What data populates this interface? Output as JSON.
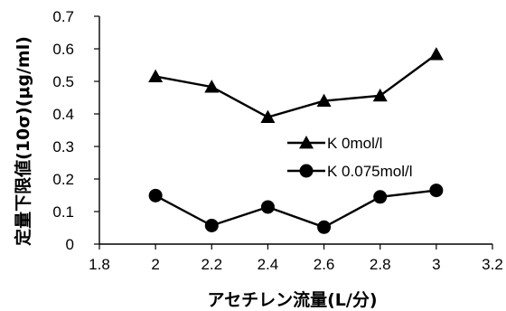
{
  "chart_data": {
    "type": "line",
    "title": "",
    "xlabel": "アセチレン流量(L/分)",
    "ylabel": "定量下限値(10σ)(μg/ml)",
    "xlim": [
      1.8,
      3.2
    ],
    "ylim": [
      0,
      0.7
    ],
    "x_ticks": [
      "1.8",
      "2",
      "2.2",
      "2.4",
      "2.6",
      "2.8",
      "3",
      "3.2"
    ],
    "y_ticks": [
      "0",
      "0.1",
      "0.2",
      "0.3",
      "0.4",
      "0.5",
      "0.6",
      "0.7"
    ],
    "grid": false,
    "legend_position": "center-right",
    "series": [
      {
        "name": "K  0mol/l",
        "marker": "triangle",
        "color": "#000000",
        "x": [
          2.0,
          2.2,
          2.4,
          2.6,
          2.8,
          3.0
        ],
        "values": [
          0.515,
          0.483,
          0.39,
          0.44,
          0.456,
          0.583
        ]
      },
      {
        "name": "K  0.075mol/l",
        "marker": "circle",
        "color": "#000000",
        "x": [
          2.0,
          2.2,
          2.4,
          2.6,
          2.8,
          3.0
        ],
        "values": [
          0.149,
          0.057,
          0.114,
          0.052,
          0.145,
          0.165
        ]
      }
    ]
  }
}
